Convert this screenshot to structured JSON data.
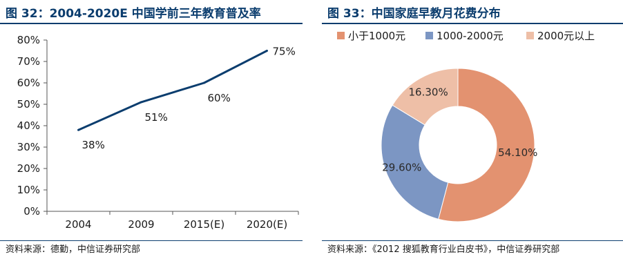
{
  "left_figure": {
    "title": "图 32：2004-2020E 中国学前三年教育普及率",
    "source": "资料来源：德勤，中信证券研究部"
  },
  "right_figure": {
    "title": "图 33：中国家庭早教月花费分布",
    "source": "资料来源：《2012 搜狐教育行业白皮书》，中信证券研究部"
  },
  "chart_data": [
    {
      "type": "line",
      "categories": [
        "2004",
        "2009",
        "2015(E)",
        "2020(E)"
      ],
      "values": [
        38,
        51,
        60,
        75
      ],
      "data_labels": [
        "38%",
        "51%",
        "60%",
        "75%"
      ],
      "ylim": [
        0,
        80
      ],
      "y_ticks": [
        "0%",
        "10%",
        "20%",
        "30%",
        "40%",
        "50%",
        "60%",
        "70%",
        "80%"
      ],
      "line_color": "#0b3d6e",
      "grid": false,
      "legend": "none"
    },
    {
      "type": "pie",
      "donut": true,
      "categories": [
        "小于1000元",
        "1000-2000元",
        "2000元以上"
      ],
      "values": [
        54.1,
        29.6,
        16.3
      ],
      "data_labels": [
        "54.10%",
        "29.60%",
        "16.30%"
      ],
      "colors": [
        "#e39270",
        "#7c96c3",
        "#eebfa7"
      ],
      "legend": "top"
    }
  ]
}
